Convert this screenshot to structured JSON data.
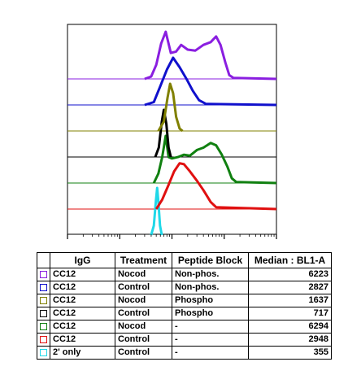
{
  "chart_data": {
    "type": "area",
    "xscale": "log",
    "x_ticks": [
      10,
      100,
      1000,
      10000,
      100000
    ],
    "grid": false,
    "series": [
      {
        "name": "CC12 Nocod Non-phos.",
        "color": "#8a1ee0",
        "median": 6223,
        "points": [
          [
            10,
            0
          ],
          [
            300,
            0
          ],
          [
            400,
            5
          ],
          [
            500,
            30
          ],
          [
            620,
            75
          ],
          [
            760,
            100
          ],
          [
            950,
            55
          ],
          [
            1200,
            58
          ],
          [
            1500,
            72
          ],
          [
            2000,
            62
          ],
          [
            2800,
            60
          ],
          [
            4000,
            72
          ],
          [
            5500,
            78
          ],
          [
            7000,
            90
          ],
          [
            8500,
            72
          ],
          [
            10500,
            35
          ],
          [
            12500,
            8
          ],
          [
            15000,
            2
          ],
          [
            100000,
            0
          ]
        ]
      },
      {
        "name": "CC12 Control Non-phos.",
        "color": "#1010cc",
        "median": 2827,
        "points": [
          [
            10,
            0
          ],
          [
            300,
            0
          ],
          [
            450,
            6
          ],
          [
            600,
            40
          ],
          [
            800,
            75
          ],
          [
            1050,
            100
          ],
          [
            1400,
            80
          ],
          [
            1900,
            55
          ],
          [
            2500,
            30
          ],
          [
            3300,
            10
          ],
          [
            4500,
            2
          ],
          [
            100000,
            0
          ]
        ]
      },
      {
        "name": "CC12 Nocod Phospho",
        "color": "#808000",
        "median": 1637,
        "points": [
          [
            10,
            0
          ],
          [
            550,
            0
          ],
          [
            700,
            20
          ],
          [
            820,
            70
          ],
          [
            920,
            100
          ],
          [
            1050,
            80
          ],
          [
            1200,
            30
          ],
          [
            1400,
            5
          ],
          [
            1600,
            0
          ],
          [
            100000,
            0
          ]
        ]
      },
      {
        "name": "CC12 Control Phospho",
        "color": "#000000",
        "median": 717,
        "points": [
          [
            10,
            0
          ],
          [
            480,
            0
          ],
          [
            560,
            20
          ],
          [
            640,
            75
          ],
          [
            700,
            100
          ],
          [
            780,
            70
          ],
          [
            860,
            20
          ],
          [
            950,
            0
          ],
          [
            100000,
            0
          ]
        ]
      },
      {
        "name": "CC12 Nocod -",
        "color": "#108010",
        "median": 6294,
        "points": [
          [
            10,
            0
          ],
          [
            450,
            0
          ],
          [
            550,
            20
          ],
          [
            650,
            55
          ],
          [
            760,
            100
          ],
          [
            860,
            55
          ],
          [
            1000,
            52
          ],
          [
            1300,
            55
          ],
          [
            1700,
            60
          ],
          [
            2200,
            58
          ],
          [
            3000,
            70
          ],
          [
            4000,
            75
          ],
          [
            5500,
            85
          ],
          [
            7000,
            80
          ],
          [
            9000,
            60
          ],
          [
            11500,
            35
          ],
          [
            14000,
            10
          ],
          [
            17000,
            2
          ],
          [
            100000,
            0
          ]
        ]
      },
      {
        "name": "CC12 Control -",
        "color": "#e01010",
        "median": 2948,
        "points": [
          [
            10,
            0
          ],
          [
            500,
            0
          ],
          [
            650,
            20
          ],
          [
            850,
            50
          ],
          [
            1100,
            80
          ],
          [
            1400,
            97
          ],
          [
            1700,
            95
          ],
          [
            2200,
            80
          ],
          [
            3000,
            60
          ],
          [
            4000,
            40
          ],
          [
            5500,
            15
          ],
          [
            7000,
            4
          ],
          [
            100000,
            0
          ]
        ]
      },
      {
        "name": "2' only Control -",
        "color": "#20d8e8",
        "median": 355,
        "points": [
          [
            10,
            0
          ],
          [
            400,
            0
          ],
          [
            450,
            20
          ],
          [
            490,
            70
          ],
          [
            520,
            100
          ],
          [
            550,
            70
          ],
          [
            590,
            20
          ],
          [
            640,
            0
          ],
          [
            100000,
            0
          ]
        ]
      }
    ]
  },
  "table": {
    "headers": [
      "IgG",
      "Treatment",
      "Peptide Block",
      "Median : BL1-A"
    ],
    "rows": [
      {
        "color": "#8a1ee0",
        "igg": "CC12",
        "treatment": "Nocod",
        "peptide": "Non-phos.",
        "median": "6223"
      },
      {
        "color": "#1010cc",
        "igg": "CC12",
        "treatment": "Control",
        "peptide": "Non-phos.",
        "median": "2827"
      },
      {
        "color": "#808000",
        "igg": "CC12",
        "treatment": "Nocod",
        "peptide": "Phospho",
        "median": "1637"
      },
      {
        "color": "#000000",
        "igg": "CC12",
        "treatment": "Control",
        "peptide": "Phospho",
        "median": "717"
      },
      {
        "color": "#108010",
        "igg": "CC12",
        "treatment": "Nocod",
        "peptide": "-",
        "median": "6294"
      },
      {
        "color": "#e01010",
        "igg": "CC12",
        "treatment": "Control",
        "peptide": "-",
        "median": "2948"
      },
      {
        "color": "#20d8e8",
        "igg": "2' only",
        "treatment": "Control",
        "peptide": "-",
        "median": "355"
      }
    ]
  }
}
